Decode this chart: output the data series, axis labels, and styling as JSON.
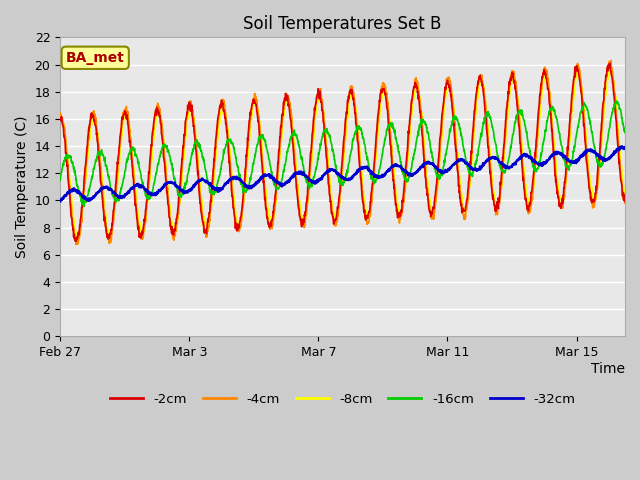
{
  "title": "Soil Temperatures Set B",
  "xlabel": "Time",
  "ylabel": "Soil Temperature (C)",
  "annotation": "BA_met",
  "ylim": [
    0,
    22
  ],
  "yticks": [
    0,
    2,
    4,
    6,
    8,
    10,
    12,
    14,
    16,
    18,
    20,
    22
  ],
  "xtick_labels": [
    "Feb 27",
    "Mar 3",
    "Mar 7",
    "Mar 11",
    "Mar 15"
  ],
  "xtick_positions": [
    0,
    4,
    8,
    12,
    16
  ],
  "xlim": [
    0,
    17.5
  ],
  "n_days": 17.5,
  "fig_bg_color": "#cccccc",
  "ax_bg_color": "#e8e8e8",
  "grid_color": "#ffffff",
  "colors": {
    "-2cm": "#dd0000",
    "-4cm": "#ff8800",
    "-8cm": "#ffff00",
    "-16cm": "#00cc00",
    "-32cm": "#0000cc"
  },
  "legend_entries": [
    "-2cm",
    "-4cm",
    "-8cm",
    "-16cm",
    "-32cm"
  ],
  "title_fontsize": 12,
  "axis_label_fontsize": 10,
  "tick_fontsize": 9
}
